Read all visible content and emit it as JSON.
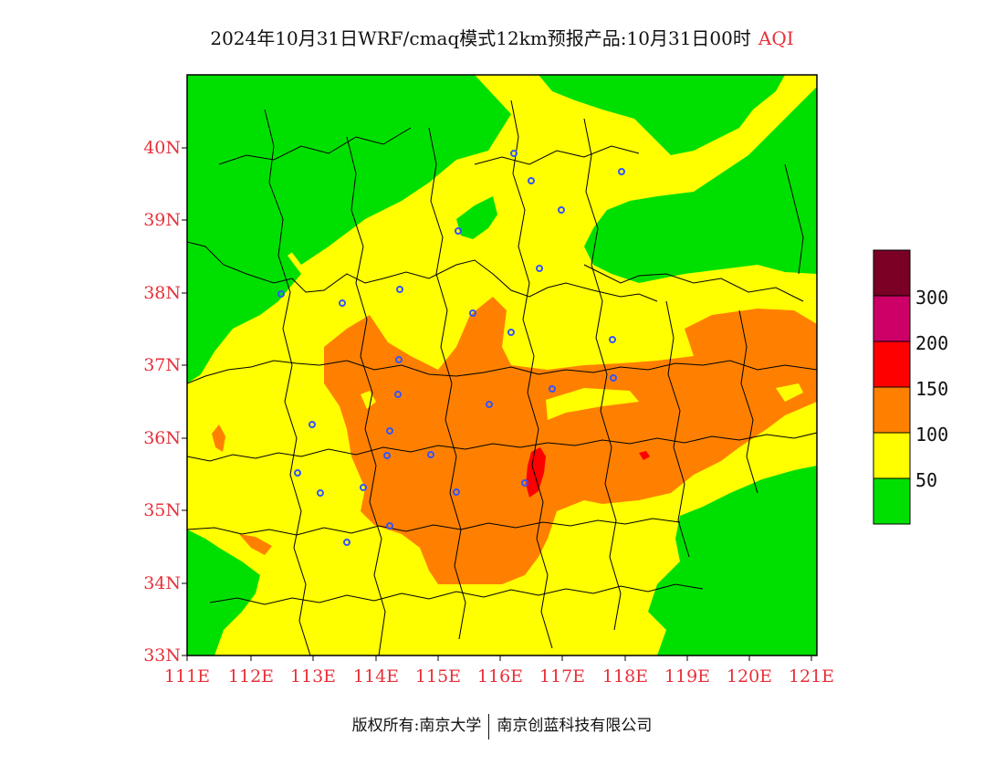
{
  "title": "2024年10月31日WRF/cmaq模式12km预报产品:10月31日00时",
  "title_tag": "AQI",
  "lat_labels": [
    "40N",
    "39N",
    "38N",
    "37N",
    "36N",
    "35N",
    "34N",
    "33N"
  ],
  "lon_labels": [
    "111E",
    "112E",
    "113E",
    "114E",
    "115E",
    "116E",
    "117E",
    "118E",
    "119E",
    "120E",
    "121E"
  ],
  "legend": {
    "labels": [
      "300",
      "200",
      "150",
      "100",
      "50"
    ],
    "colors": [
      "#7a0026",
      "#cc0066",
      "#ff0000",
      "#ff8000",
      "#ffff00",
      "#00e000"
    ]
  },
  "footer": {
    "left": "版权所有:南京大学",
    "right": "南京创蓝科技有限公司"
  },
  "colors": {
    "good": "#00e000",
    "moderate": "#ffff00",
    "sensitive": "#ff8000",
    "unhealthy": "#ff0000",
    "axis_label": "#e8303a",
    "city_marker": "#3355ff",
    "boundary": "#000000"
  }
}
